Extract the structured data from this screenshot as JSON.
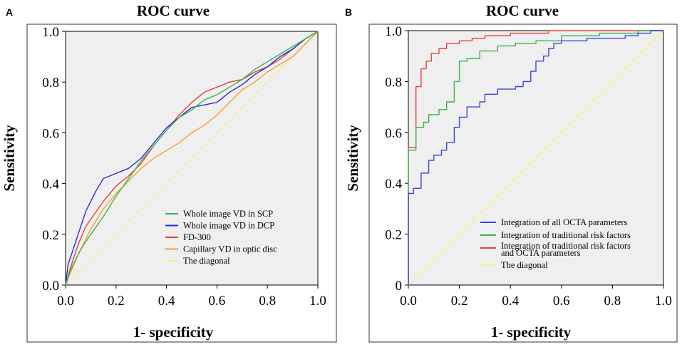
{
  "chart_data": [
    {
      "type": "line",
      "panel_label": "A",
      "title": "ROC curve",
      "xlabel": "1- specificity",
      "ylabel": "Sensitivity",
      "xlim": [
        0,
        1
      ],
      "ylim": [
        0,
        1
      ],
      "xticks": [
        "0.0",
        "0.2",
        "0.4",
        "0.6",
        "0.8",
        "1.0"
      ],
      "yticks": [
        "0.0",
        "0.2",
        "0.4",
        "0.6",
        "0.8",
        "1.0"
      ],
      "grid": false,
      "legend_position": "bottom-right",
      "series": [
        {
          "name": "Whole image VD in SCP",
          "color": "#3cb44b",
          "x": [
            0,
            0.02,
            0.04,
            0.06,
            0.1,
            0.15,
            0.2,
            0.25,
            0.3,
            0.35,
            0.4,
            0.45,
            0.5,
            0.55,
            0.6,
            0.65,
            0.7,
            0.75,
            0.8,
            0.85,
            0.9,
            0.95,
            1.0
          ],
          "y": [
            0,
            0.06,
            0.1,
            0.14,
            0.2,
            0.27,
            0.35,
            0.42,
            0.49,
            0.55,
            0.61,
            0.66,
            0.69,
            0.73,
            0.75,
            0.78,
            0.81,
            0.85,
            0.88,
            0.91,
            0.94,
            0.97,
            1.0
          ]
        },
        {
          "name": "Whole image VD in DCP",
          "color": "#2b2bd6",
          "x": [
            0,
            0.01,
            0.03,
            0.05,
            0.08,
            0.12,
            0.15,
            0.2,
            0.25,
            0.3,
            0.35,
            0.4,
            0.45,
            0.5,
            0.55,
            0.6,
            0.65,
            0.7,
            0.75,
            0.8,
            0.85,
            0.9,
            0.95,
            1.0
          ],
          "y": [
            0,
            0.08,
            0.14,
            0.2,
            0.29,
            0.37,
            0.42,
            0.44,
            0.46,
            0.5,
            0.56,
            0.62,
            0.66,
            0.7,
            0.71,
            0.72,
            0.76,
            0.79,
            0.83,
            0.86,
            0.9,
            0.93,
            0.97,
            1.0
          ]
        },
        {
          "name": "FD-300",
          "color": "#e8403a",
          "x": [
            0,
            0.02,
            0.05,
            0.08,
            0.1,
            0.15,
            0.2,
            0.25,
            0.3,
            0.35,
            0.4,
            0.45,
            0.5,
            0.55,
            0.6,
            0.65,
            0.7,
            0.75,
            0.8,
            0.85,
            0.9,
            0.95,
            1.0
          ],
          "y": [
            0,
            0.07,
            0.16,
            0.23,
            0.26,
            0.33,
            0.39,
            0.43,
            0.48,
            0.55,
            0.61,
            0.67,
            0.72,
            0.76,
            0.78,
            0.8,
            0.81,
            0.84,
            0.86,
            0.89,
            0.93,
            0.97,
            1.0
          ]
        },
        {
          "name": "Capillary VD in optic disc",
          "color": "#f5a02a",
          "x": [
            0,
            0.02,
            0.05,
            0.1,
            0.15,
            0.2,
            0.25,
            0.3,
            0.35,
            0.4,
            0.45,
            0.5,
            0.55,
            0.6,
            0.65,
            0.7,
            0.75,
            0.8,
            0.85,
            0.9,
            0.95,
            1.0
          ],
          "y": [
            0,
            0.05,
            0.12,
            0.22,
            0.3,
            0.36,
            0.41,
            0.46,
            0.5,
            0.53,
            0.56,
            0.6,
            0.63,
            0.67,
            0.72,
            0.77,
            0.8,
            0.84,
            0.87,
            0.9,
            0.95,
            1.0
          ]
        },
        {
          "name": "The diagonal",
          "color": "#f3ec9a",
          "x": [
            0,
            1
          ],
          "y": [
            0,
            1
          ]
        }
      ]
    },
    {
      "type": "line",
      "panel_label": "B",
      "title": "ROC curve",
      "xlabel": "1- specificity",
      "ylabel": "Sensitivity",
      "xlim": [
        0,
        1
      ],
      "ylim": [
        0,
        1
      ],
      "xticks": [
        "0.0",
        "0.2",
        "0.4",
        "0.6",
        "0.8",
        "1.0"
      ],
      "yticks": [
        "0",
        "0.2",
        "0.4",
        "0.6",
        "0.8",
        "1.0"
      ],
      "grid": false,
      "legend_position": "bottom-right",
      "series": [
        {
          "name": "Integration of all OCTA parameters",
          "color": "#3a48d8",
          "x": [
            0,
            0,
            0.02,
            0.02,
            0.05,
            0.05,
            0.08,
            0.08,
            0.1,
            0.1,
            0.13,
            0.13,
            0.15,
            0.15,
            0.18,
            0.18,
            0.2,
            0.2,
            0.23,
            0.23,
            0.25,
            0.25,
            0.28,
            0.28,
            0.3,
            0.3,
            0.35,
            0.35,
            0.38,
            0.38,
            0.42,
            0.42,
            0.45,
            0.45,
            0.48,
            0.48,
            0.5,
            0.5,
            0.53,
            0.53,
            0.55,
            0.55,
            0.57,
            0.57,
            0.6,
            0.6,
            0.7,
            0.7,
            0.85,
            0.85,
            0.9,
            0.9,
            0.95,
            0.95,
            1.0
          ],
          "y": [
            0,
            0.36,
            0.36,
            0.38,
            0.38,
            0.44,
            0.44,
            0.49,
            0.49,
            0.51,
            0.51,
            0.53,
            0.53,
            0.56,
            0.56,
            0.62,
            0.62,
            0.66,
            0.66,
            0.7,
            0.7,
            0.7,
            0.7,
            0.72,
            0.72,
            0.75,
            0.75,
            0.77,
            0.77,
            0.77,
            0.77,
            0.78,
            0.78,
            0.8,
            0.8,
            0.84,
            0.84,
            0.88,
            0.88,
            0.9,
            0.9,
            0.93,
            0.93,
            0.95,
            0.95,
            0.96,
            0.96,
            0.97,
            0.97,
            0.98,
            0.98,
            0.99,
            0.99,
            1.0,
            1.0
          ]
        },
        {
          "name": "Integration of traditional risk factors",
          "color": "#3cb44b",
          "x": [
            0,
            0,
            0.03,
            0.03,
            0.06,
            0.06,
            0.08,
            0.08,
            0.12,
            0.12,
            0.15,
            0.15,
            0.18,
            0.18,
            0.2,
            0.2,
            0.23,
            0.23,
            0.28,
            0.28,
            0.35,
            0.35,
            0.42,
            0.42,
            0.5,
            0.5,
            0.6,
            0.6,
            0.75,
            0.75,
            0.9,
            0.9,
            1.0
          ],
          "y": [
            0,
            0.53,
            0.53,
            0.62,
            0.62,
            0.64,
            0.64,
            0.67,
            0.67,
            0.69,
            0.69,
            0.72,
            0.72,
            0.8,
            0.8,
            0.88,
            0.88,
            0.89,
            0.89,
            0.92,
            0.92,
            0.94,
            0.94,
            0.95,
            0.95,
            0.96,
            0.96,
            0.98,
            0.98,
            0.99,
            0.99,
            1.0,
            1.0
          ]
        },
        {
          "name": "Integration of traditional risk factors and OCTA parameters",
          "color": "#e8403a",
          "x": [
            0,
            0,
            0.03,
            0.03,
            0.05,
            0.05,
            0.07,
            0.07,
            0.09,
            0.09,
            0.12,
            0.12,
            0.15,
            0.15,
            0.2,
            0.2,
            0.25,
            0.25,
            0.3,
            0.3,
            0.4,
            0.4,
            0.55,
            0.55,
            0.7,
            0.7,
            1.0
          ],
          "y": [
            0,
            0.54,
            0.54,
            0.78,
            0.78,
            0.85,
            0.85,
            0.88,
            0.88,
            0.91,
            0.91,
            0.93,
            0.93,
            0.95,
            0.95,
            0.96,
            0.96,
            0.97,
            0.97,
            0.98,
            0.98,
            0.99,
            0.99,
            1.0,
            1.0,
            1.0,
            1.0
          ]
        },
        {
          "name": "The diagonal",
          "color": "#f3ec9a",
          "x": [
            0,
            1
          ],
          "y": [
            0,
            1
          ]
        }
      ]
    }
  ]
}
